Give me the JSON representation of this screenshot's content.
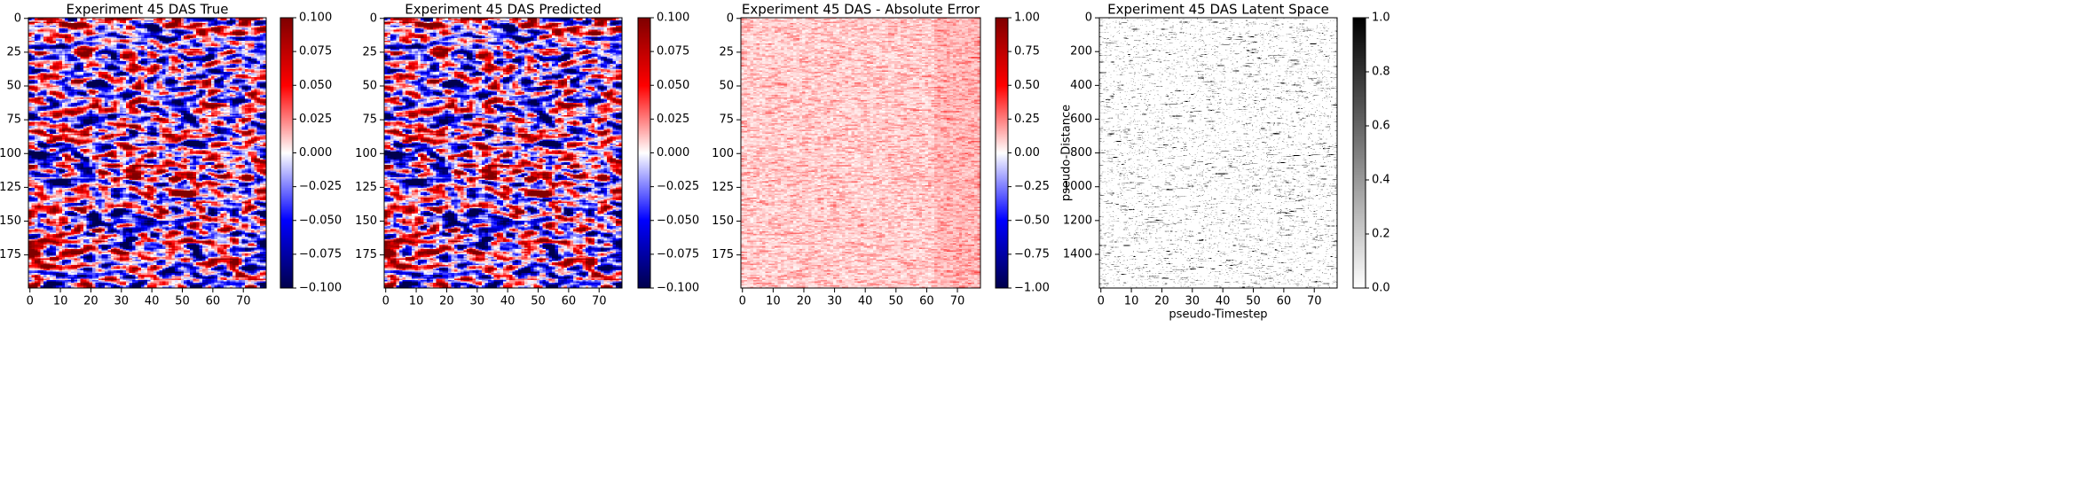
{
  "chart_data": [
    {
      "type": "heatmap",
      "title": "Experiment 45 DAS True",
      "xlabel": "",
      "ylabel": "",
      "colormap": "seismic",
      "x_ticks": [
        0,
        10,
        20,
        30,
        40,
        50,
        60,
        70
      ],
      "y_ticks": [
        0,
        25,
        50,
        75,
        100,
        125,
        150,
        175
      ],
      "x_range": [
        -0.5,
        77.5
      ],
      "y_range": [
        -0.5,
        199.5
      ],
      "colorbar_ticks": [
        "0.100",
        "0.075",
        "0.050",
        "0.025",
        "0.000",
        "−0.025",
        "−0.050",
        "−0.075",
        "−0.100"
      ],
      "colorbar_range": [
        -0.1,
        0.1
      ],
      "grid_size": [
        200,
        78
      ],
      "texture": "saturated blobs",
      "seed": 7
    },
    {
      "type": "heatmap",
      "title": "Experiment 45 DAS Predicted",
      "xlabel": "",
      "ylabel": "",
      "colormap": "seismic",
      "x_ticks": [
        0,
        10,
        20,
        30,
        40,
        50,
        60,
        70
      ],
      "y_ticks": [
        0,
        25,
        50,
        75,
        100,
        125,
        150,
        175
      ],
      "x_range": [
        -0.5,
        77.5
      ],
      "y_range": [
        -0.5,
        199.5
      ],
      "colorbar_ticks": [
        "0.100",
        "0.075",
        "0.050",
        "0.025",
        "0.000",
        "−0.025",
        "−0.050",
        "−0.075",
        "−0.100"
      ],
      "colorbar_range": [
        -0.1,
        0.1
      ],
      "grid_size": [
        200,
        78
      ],
      "texture": "saturated blobs",
      "seed": 7
    },
    {
      "type": "heatmap",
      "title": "Experiment 45 DAS - Absolute Error",
      "xlabel": "",
      "ylabel": "",
      "colormap": "seismic",
      "x_ticks": [
        0,
        10,
        20,
        30,
        40,
        50,
        60,
        70
      ],
      "y_ticks": [
        0,
        25,
        50,
        75,
        100,
        125,
        150,
        175
      ],
      "x_range": [
        -0.5,
        77.5
      ],
      "y_range": [
        -0.5,
        199.5
      ],
      "colorbar_ticks": [
        "1.00",
        "0.75",
        "0.50",
        "0.25",
        "0.00",
        "−0.25",
        "−0.50",
        "−0.75",
        "−1.00"
      ],
      "colorbar_range": [
        -1,
        1
      ],
      "grid_size": [
        200,
        78
      ],
      "texture": "light red noise (values mostly 0 to 0.3)",
      "seed": 19
    },
    {
      "type": "heatmap",
      "title": "Experiment 45 DAS Latent Space",
      "xlabel": "pseudo-Timestep",
      "ylabel": "pseudo-Distance",
      "colormap": "binary",
      "x_ticks": [
        0,
        10,
        20,
        30,
        40,
        50,
        60,
        70
      ],
      "y_ticks": [
        0,
        200,
        400,
        600,
        800,
        1000,
        1200,
        1400
      ],
      "x_range": [
        -0.5,
        77.5
      ],
      "y_range": [
        -0.5,
        1599.5
      ],
      "colorbar_ticks": [
        "1.0",
        "0.8",
        "0.6",
        "0.4",
        "0.2",
        "0.0"
      ],
      "colorbar_range": [
        0,
        1
      ],
      "grid_size": [
        1600,
        78
      ],
      "texture": "sparse black horizontal streaks on white",
      "seed": 31
    }
  ]
}
